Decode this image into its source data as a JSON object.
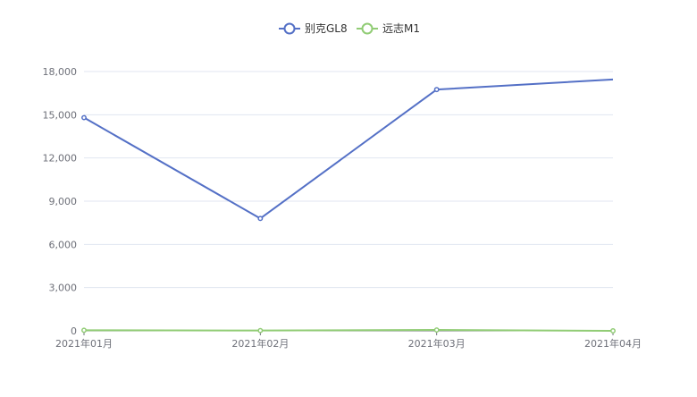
{
  "chart_data": {
    "type": "line",
    "title": "",
    "xlabel": "",
    "ylabel": "",
    "categories": [
      "2021年01月",
      "2021年02月",
      "2021年03月",
      "2021年04月"
    ],
    "ylim": [
      0,
      18000
    ],
    "yticks": [
      0,
      3000,
      6000,
      9000,
      12000,
      15000,
      18000
    ],
    "ytick_labels": [
      "0",
      "3,000",
      "6,000",
      "9,000",
      "12,000",
      "15,000",
      "18,000"
    ],
    "grid": true,
    "legend_position": "top-center",
    "series": [
      {
        "name": "别克GL8",
        "color": "#5470c6",
        "values": [
          14800,
          7800,
          16750,
          17450
        ]
      },
      {
        "name": "远志M1",
        "color": "#91cc75",
        "values": [
          40,
          20,
          60,
          0
        ]
      }
    ]
  }
}
